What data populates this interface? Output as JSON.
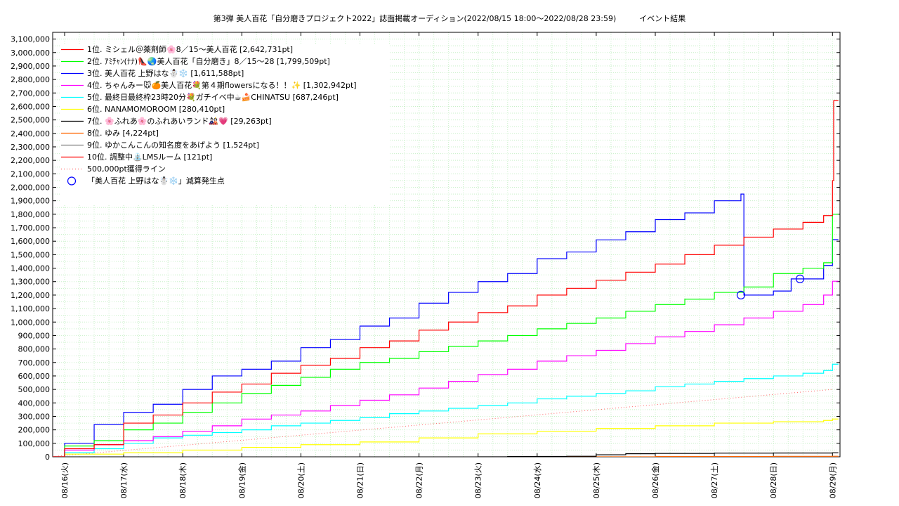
{
  "chart_data": {
    "type": "line",
    "title": "第3弾 美人百花「自分磨きプロジェクト2022」誌面掲載オーディション(2022/08/15 18:00〜2022/08/28 23:59)　　　イベント結果",
    "xlabel": "",
    "ylabel": "",
    "x_tick_labels": [
      "08/16(火)",
      "08/17(水)",
      "08/18(木)",
      "08/19(金)",
      "08/20(土)",
      "08/21(日)",
      "08/22(月)",
      "08/23(火)",
      "08/24(水)",
      "08/25(木)",
      "08/26(金)",
      "08/27(土)",
      "08/28(日)",
      "08/29(月)"
    ],
    "xlim": [
      0.0,
      13.1
    ],
    "ylim": [
      0,
      3150000
    ],
    "y_ticks": [
      0,
      100000,
      200000,
      300000,
      400000,
      500000,
      600000,
      700000,
      800000,
      900000,
      1000000,
      1100000,
      1200000,
      1300000,
      1400000,
      1500000,
      1600000,
      1700000,
      1800000,
      1900000,
      2000000,
      2100000,
      2200000,
      2300000,
      2400000,
      2500000,
      2600000,
      2700000,
      2800000,
      2900000,
      3000000,
      3100000
    ],
    "y_tick_labels": [
      "0",
      "100,000",
      "200,000",
      "300,000",
      "400,000",
      "500,000",
      "600,000",
      "700,000",
      "800,000",
      "900,000",
      "1,000,000",
      "1,100,000",
      "1,200,000",
      "1,300,000",
      "1,400,000",
      "1,500,000",
      "1,600,000",
      "1,700,000",
      "1,800,000",
      "1,900,000",
      "2,000,000",
      "2,100,000",
      "2,200,000",
      "2,300,000",
      "2,400,000",
      "2,500,000",
      "2,600,000",
      "2,700,000",
      "2,800,000",
      "2,900,000",
      "3,000,000",
      "3,100,000"
    ],
    "grid": true,
    "legend_position": "top-left",
    "series": [
      {
        "name": "1位. ミシェル＠薬剤師🌸8／15〜美人百花 [2,642,731pt]",
        "color": "#ff0000",
        "points": [
          [
            -0.25,
            0
          ],
          [
            0,
            60000
          ],
          [
            0.5,
            90000
          ],
          [
            1,
            250000
          ],
          [
            1.5,
            310000
          ],
          [
            2,
            400000
          ],
          [
            2.5,
            480000
          ],
          [
            3,
            540000
          ],
          [
            3.5,
            620000
          ],
          [
            4,
            680000
          ],
          [
            4.5,
            730000
          ],
          [
            5,
            810000
          ],
          [
            5.5,
            860000
          ],
          [
            6,
            940000
          ],
          [
            6.5,
            1000000
          ],
          [
            7,
            1070000
          ],
          [
            7.5,
            1120000
          ],
          [
            8,
            1200000
          ],
          [
            8.5,
            1250000
          ],
          [
            9,
            1310000
          ],
          [
            9.5,
            1370000
          ],
          [
            10,
            1430000
          ],
          [
            10.5,
            1500000
          ],
          [
            11,
            1570000
          ],
          [
            11.5,
            1630000
          ],
          [
            12,
            1690000
          ],
          [
            12.5,
            1740000
          ],
          [
            12.85,
            1790000
          ],
          [
            13.0,
            2050000
          ],
          [
            13.02,
            2642731
          ],
          [
            13.1,
            2642731
          ]
        ]
      },
      {
        "name": "2位. ｱﾐﾁｬﾝ(ﾅﾅ)👠🌏美人百花「自分磨き」8／15〜28 [1,799,509pt]",
        "color": "#00ff00",
        "points": [
          [
            -0.25,
            0
          ],
          [
            0,
            80000
          ],
          [
            0.5,
            120000
          ],
          [
            1,
            200000
          ],
          [
            1.5,
            250000
          ],
          [
            2,
            330000
          ],
          [
            2.5,
            400000
          ],
          [
            3,
            470000
          ],
          [
            3.5,
            530000
          ],
          [
            4,
            590000
          ],
          [
            4.5,
            650000
          ],
          [
            5,
            700000
          ],
          [
            5.5,
            730000
          ],
          [
            6,
            780000
          ],
          [
            6.5,
            820000
          ],
          [
            7,
            860000
          ],
          [
            7.5,
            900000
          ],
          [
            8,
            950000
          ],
          [
            8.5,
            990000
          ],
          [
            9,
            1030000
          ],
          [
            9.5,
            1080000
          ],
          [
            10,
            1130000
          ],
          [
            10.5,
            1170000
          ],
          [
            11,
            1220000
          ],
          [
            11.5,
            1260000
          ],
          [
            12,
            1360000
          ],
          [
            12.5,
            1400000
          ],
          [
            12.85,
            1440000
          ],
          [
            13.0,
            1799509
          ],
          [
            13.1,
            1799509
          ]
        ]
      },
      {
        "name": "3位. 美人百花 上野はな☃️❄️ [1,611,588pt]",
        "color": "#0000ff",
        "points": [
          [
            -0.25,
            0
          ],
          [
            0,
            100000
          ],
          [
            0.5,
            240000
          ],
          [
            1,
            330000
          ],
          [
            1.5,
            390000
          ],
          [
            2,
            500000
          ],
          [
            2.5,
            600000
          ],
          [
            3,
            650000
          ],
          [
            3.5,
            710000
          ],
          [
            4,
            810000
          ],
          [
            4.5,
            870000
          ],
          [
            5,
            970000
          ],
          [
            5.5,
            1030000
          ],
          [
            6,
            1140000
          ],
          [
            6.5,
            1220000
          ],
          [
            7,
            1300000
          ],
          [
            7.5,
            1360000
          ],
          [
            8,
            1470000
          ],
          [
            8.5,
            1520000
          ],
          [
            9,
            1610000
          ],
          [
            9.5,
            1670000
          ],
          [
            10,
            1760000
          ],
          [
            10.5,
            1810000
          ],
          [
            11,
            1900000
          ],
          [
            11.45,
            1950000
          ],
          [
            11.5,
            1200000
          ],
          [
            12,
            1230000
          ],
          [
            12.3,
            1320000
          ],
          [
            12.85,
            1420000
          ],
          [
            13.0,
            1611588
          ],
          [
            13.1,
            1611588
          ]
        ]
      },
      {
        "name": "4位. ちゃんみー🐭🍊美人百花💐第４期flowersになる！！✨ [1,302,942pt]",
        "color": "#ff00ff",
        "points": [
          [
            -0.25,
            0
          ],
          [
            0,
            50000
          ],
          [
            0.5,
            90000
          ],
          [
            1,
            120000
          ],
          [
            1.5,
            150000
          ],
          [
            2,
            190000
          ],
          [
            2.5,
            230000
          ],
          [
            3,
            280000
          ],
          [
            3.5,
            310000
          ],
          [
            4,
            340000
          ],
          [
            4.5,
            380000
          ],
          [
            5,
            420000
          ],
          [
            5.5,
            460000
          ],
          [
            6,
            510000
          ],
          [
            6.5,
            560000
          ],
          [
            7,
            610000
          ],
          [
            7.5,
            650000
          ],
          [
            8,
            710000
          ],
          [
            8.5,
            750000
          ],
          [
            9,
            790000
          ],
          [
            9.5,
            840000
          ],
          [
            10,
            890000
          ],
          [
            10.5,
            930000
          ],
          [
            11,
            980000
          ],
          [
            11.5,
            1030000
          ],
          [
            12,
            1080000
          ],
          [
            12.5,
            1130000
          ],
          [
            12.85,
            1200000
          ],
          [
            13.0,
            1302942
          ],
          [
            13.1,
            1302942
          ]
        ]
      },
      {
        "name": "5位. 最終日最終枠23時20分💐ガチイベ中☕🍰CHINATSU [687,246pt]",
        "color": "#00ffff",
        "points": [
          [
            -0.25,
            0
          ],
          [
            0,
            30000
          ],
          [
            0.5,
            60000
          ],
          [
            1,
            100000
          ],
          [
            1.5,
            140000
          ],
          [
            2,
            160000
          ],
          [
            2.5,
            180000
          ],
          [
            3,
            200000
          ],
          [
            3.5,
            230000
          ],
          [
            4,
            250000
          ],
          [
            4.5,
            270000
          ],
          [
            5,
            290000
          ],
          [
            5.5,
            320000
          ],
          [
            6,
            340000
          ],
          [
            6.5,
            360000
          ],
          [
            7,
            380000
          ],
          [
            7.5,
            400000
          ],
          [
            8,
            430000
          ],
          [
            8.5,
            450000
          ],
          [
            9,
            470000
          ],
          [
            9.5,
            490000
          ],
          [
            10,
            520000
          ],
          [
            10.5,
            540000
          ],
          [
            11,
            560000
          ],
          [
            11.5,
            580000
          ],
          [
            12,
            600000
          ],
          [
            12.5,
            620000
          ],
          [
            12.85,
            640000
          ],
          [
            13.0,
            687246
          ],
          [
            13.1,
            687246
          ]
        ]
      },
      {
        "name": "6位. NANAMOMOROOM [280,410pt]",
        "color": "#ffff00",
        "points": [
          [
            -0.25,
            0
          ],
          [
            0,
            20000
          ],
          [
            1,
            30000
          ],
          [
            2,
            50000
          ],
          [
            3,
            70000
          ],
          [
            4,
            90000
          ],
          [
            5,
            110000
          ],
          [
            6,
            140000
          ],
          [
            7,
            170000
          ],
          [
            8,
            190000
          ],
          [
            9,
            210000
          ],
          [
            10,
            230000
          ],
          [
            11,
            250000
          ],
          [
            12,
            260000
          ],
          [
            12.85,
            270000
          ],
          [
            13.0,
            280410
          ],
          [
            13.1,
            280410
          ]
        ]
      },
      {
        "name": "7位. 🌸ふれあ🌸のふれあいランド🎎💗 [29,263pt]",
        "color": "#000000",
        "points": [
          [
            7,
            0
          ],
          [
            7.5,
            2000
          ],
          [
            8,
            3000
          ],
          [
            8.5,
            4000
          ],
          [
            9,
            15000
          ],
          [
            9.5,
            23000
          ],
          [
            10,
            25000
          ],
          [
            11,
            27000
          ],
          [
            12,
            28000
          ],
          [
            13.0,
            29263
          ],
          [
            13.1,
            29263
          ]
        ]
      },
      {
        "name": "8位. ゆみ [4,224pt]",
        "color": "#ff6600",
        "points": [
          [
            8,
            0
          ],
          [
            10,
            2000
          ],
          [
            12,
            3500
          ],
          [
            13.0,
            4224
          ],
          [
            13.1,
            4224
          ]
        ]
      },
      {
        "name": "9位. ゆかこんこんの知名度をあげよう [1,524pt]",
        "color": "#808080",
        "points": [
          [
            10,
            0
          ],
          [
            12,
            1000
          ],
          [
            13.0,
            1524
          ],
          [
            13.1,
            1524
          ]
        ]
      },
      {
        "name": "10位. 調整中⛲LMSルーム [121pt]",
        "color": "#ff0000",
        "points": [
          [
            11,
            0
          ],
          [
            13.0,
            121
          ],
          [
            13.1,
            121
          ]
        ]
      }
    ],
    "reference_line": {
      "name": "500,000pt獲得ライン",
      "color": "#ff6666",
      "points": [
        [
          -0.25,
          0
        ],
        [
          13.0,
          500000
        ]
      ]
    },
    "markers": {
      "name": "「美人百花 上野はな☃️❄️」減算発生点",
      "color": "#0000ff",
      "points": [
        [
          11.45,
          1200000
        ],
        [
          12.45,
          1320000
        ]
      ]
    }
  }
}
